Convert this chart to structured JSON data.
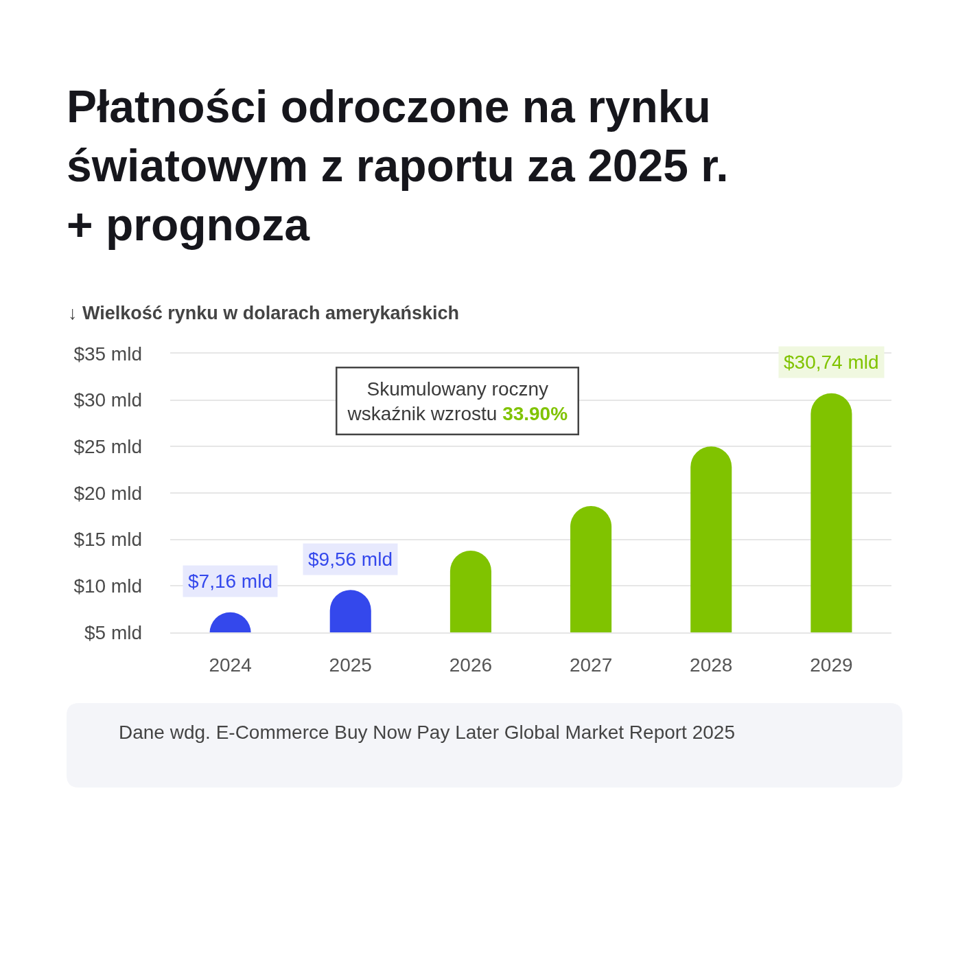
{
  "chart_data": {
    "type": "bar",
    "title": "Płatności odroczone na rynku światowym z raportu za 2025 r. + prognoza",
    "subtitle": "↓ Wielkość rynku w dolarach amerykańskich",
    "categories": [
      "2024",
      "2025",
      "2026",
      "2027",
      "2028",
      "2029"
    ],
    "values": [
      7.16,
      9.56,
      13.8,
      18.6,
      25.0,
      30.74
    ],
    "colors": [
      "#3448ec",
      "#3448ec",
      "#80c300",
      "#80c300",
      "#80c300",
      "#80c300"
    ],
    "value_labels": [
      "$7,16 mld",
      "$9,56 mld",
      null,
      null,
      null,
      "$30,74 mld"
    ],
    "ylim": [
      5,
      35
    ],
    "yticks": [
      {
        "value": 5,
        "label": "$5 mld"
      },
      {
        "value": 10,
        "label": "$10 mld"
      },
      {
        "value": 15,
        "label": "$15 mld"
      },
      {
        "value": 20,
        "label": "$20 mld"
      },
      {
        "value": 25,
        "label": "$25 mld"
      },
      {
        "value": 30,
        "label": "$30 mld"
      },
      {
        "value": 35,
        "label": "$35 mld"
      }
    ],
    "grid": "y",
    "annotations": [
      "Skumulowany roczny wskaźnik wzrostu 33.90%",
      "Dane wdg. E-Commerce Buy Now Pay Later Global Market Report 2025"
    ]
  }
}
